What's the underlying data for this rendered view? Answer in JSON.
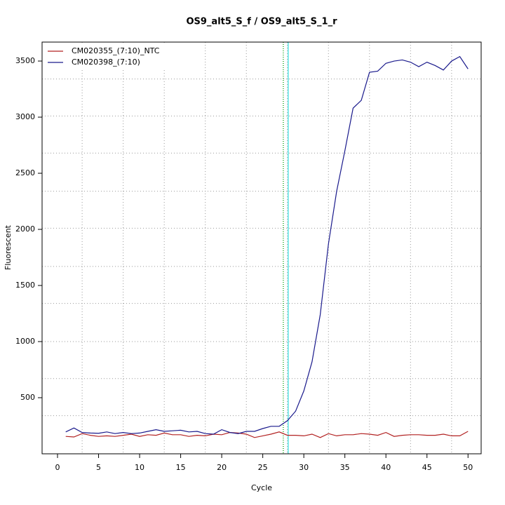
{
  "chart_data": {
    "type": "line",
    "title": "OS9_alt5_S_f / OS9_alt5_S_1_r",
    "x_label": "Cycle",
    "y_label": "Fluorescent",
    "x": [
      1,
      2,
      3,
      4,
      5,
      6,
      7,
      8,
      9,
      10,
      11,
      12,
      13,
      14,
      15,
      16,
      17,
      18,
      19,
      20,
      21,
      22,
      23,
      24,
      25,
      26,
      27,
      28,
      29,
      30,
      31,
      32,
      33,
      34,
      35,
      36,
      37,
      38,
      39,
      40,
      41,
      42,
      43,
      44,
      45,
      46,
      47,
      48,
      49,
      50
    ],
    "series": [
      {
        "name": "CM020355_(7:10)_NTC",
        "color": "#b22222",
        "values": [
          155,
          150,
          180,
          165,
          155,
          160,
          155,
          165,
          175,
          155,
          170,
          165,
          185,
          170,
          170,
          155,
          165,
          160,
          175,
          170,
          190,
          185,
          175,
          145,
          160,
          175,
          195,
          165,
          165,
          160,
          175,
          145,
          180,
          160,
          170,
          170,
          180,
          175,
          165,
          190,
          155,
          165,
          170,
          170,
          165,
          165,
          175,
          160,
          160,
          200
        ]
      },
      {
        "name": "CM020398_(7:10)",
        "color": "#1a1a8c",
        "values": [
          195,
          230,
          190,
          185,
          183,
          195,
          180,
          190,
          180,
          185,
          200,
          215,
          200,
          205,
          210,
          195,
          200,
          180,
          175,
          215,
          190,
          180,
          200,
          200,
          225,
          245,
          245,
          295,
          380,
          560,
          820,
          1240,
          1870,
          2340,
          2700,
          3080,
          3150,
          3400,
          3410,
          3480,
          3500,
          3510,
          3490,
          3450,
          3490,
          3460,
          3420,
          3500,
          3540,
          3430
        ]
      }
    ],
    "xlim": [
      -1.88,
      51.6
    ],
    "ylim": [
      0,
      3669
    ],
    "xticks": [
      0,
      5,
      10,
      15,
      20,
      25,
      30,
      35,
      40,
      45,
      50
    ],
    "yticks": [
      500,
      1000,
      1500,
      2000,
      2500,
      3000,
      3500
    ],
    "xgrid": [
      3,
      8,
      13,
      18,
      23,
      28,
      33,
      38,
      43,
      48
    ],
    "ygrid": [
      340,
      670,
      1000,
      1340,
      1670,
      2010,
      2340,
      2680,
      3010,
      3340
    ],
    "vlines": [
      {
        "value": 27.5,
        "color": "#22aa22",
        "dashed": true
      },
      {
        "value": 28.1,
        "color": "#33dddd",
        "dashed": false
      }
    ],
    "legend": "top-left"
  }
}
